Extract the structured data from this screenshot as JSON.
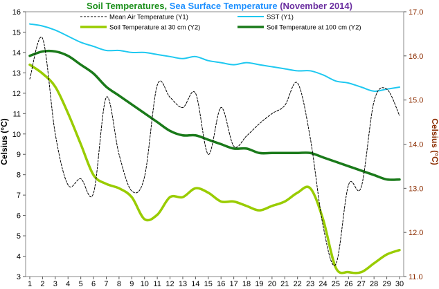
{
  "chart_data": {
    "type": "line",
    "title_parts": [
      {
        "text": "Soil Temperatures",
        "color": "#1a8f1a"
      },
      {
        "text": ", ",
        "color": "#1a8f1a"
      },
      {
        "text": "Sea Surface Temperature",
        "color": "#1e90ff"
      },
      {
        "text": " (November 2014)",
        "color": "#6b2fa0"
      }
    ],
    "ylabel": "Celsius (°C)",
    "y2label": "Celsius (°C)",
    "x": [
      1,
      2,
      3,
      4,
      5,
      6,
      7,
      8,
      9,
      10,
      11,
      12,
      13,
      14,
      15,
      16,
      17,
      18,
      19,
      20,
      21,
      22,
      23,
      24,
      25,
      26,
      27,
      28,
      29,
      30
    ],
    "xlim": [
      1,
      30
    ],
    "ylim": [
      3,
      16
    ],
    "y2lim": [
      11.0,
      17.0
    ],
    "y_ticks": [
      3,
      4,
      5,
      6,
      7,
      8,
      9,
      10,
      11,
      12,
      13,
      14,
      15,
      16
    ],
    "y2_ticks": [
      "11.0",
      "12.0",
      "13.0",
      "14.0",
      "15.0",
      "16.0",
      "17.0"
    ],
    "grid": false,
    "legend_position": "top",
    "series": [
      {
        "name": "Mean Air Temperature (Y1)",
        "axis": "y1",
        "color": "#000000",
        "style": "dashed",
        "width": 1,
        "values": [
          12.7,
          14.7,
          10.0,
          7.5,
          7.8,
          7.1,
          11.8,
          9.0,
          7.2,
          7.9,
          12.4,
          11.8,
          11.3,
          12.0,
          9.0,
          11.3,
          9.4,
          9.9,
          10.5,
          11.0,
          11.4,
          12.5,
          9.8,
          5.5,
          3.6,
          7.5,
          7.4,
          11.6,
          12.2,
          10.9
        ]
      },
      {
        "name": "SST (Y1)",
        "axis": "y1",
        "color": "#1ec8f0",
        "style": "solid",
        "width": 2,
        "values": [
          15.4,
          15.3,
          15.1,
          14.8,
          14.5,
          14.3,
          14.1,
          14.1,
          14.0,
          14.0,
          13.9,
          13.8,
          13.7,
          13.8,
          13.6,
          13.5,
          13.4,
          13.5,
          13.4,
          13.3,
          13.2,
          13.1,
          13.1,
          12.9,
          12.6,
          12.5,
          12.3,
          12.1,
          12.2,
          12.3
        ]
      },
      {
        "name": "Soil Temperature at 30 cm (Y2)",
        "axis": "y2",
        "color": "#99cc00",
        "style": "solid",
        "width": 3.5,
        "values": [
          15.8,
          15.6,
          15.3,
          14.7,
          14.0,
          13.3,
          13.1,
          13.0,
          12.8,
          12.3,
          12.4,
          12.8,
          12.8,
          13.0,
          12.9,
          12.7,
          12.7,
          12.6,
          12.5,
          12.6,
          12.7,
          12.9,
          13.0,
          12.3,
          11.2,
          11.1,
          11.1,
          11.3,
          11.5,
          11.6
        ]
      },
      {
        "name": "Soil Temperature at 100 cm (Y2)",
        "axis": "y2",
        "color": "#1a7a1a",
        "style": "solid",
        "width": 3.5,
        "values": [
          16.0,
          16.1,
          16.1,
          16.0,
          15.8,
          15.6,
          15.3,
          15.1,
          14.9,
          14.7,
          14.5,
          14.3,
          14.2,
          14.2,
          14.1,
          14.0,
          13.9,
          13.9,
          13.8,
          13.8,
          13.8,
          13.8,
          13.8,
          13.7,
          13.6,
          13.5,
          13.4,
          13.3,
          13.2,
          13.2
        ]
      }
    ]
  }
}
